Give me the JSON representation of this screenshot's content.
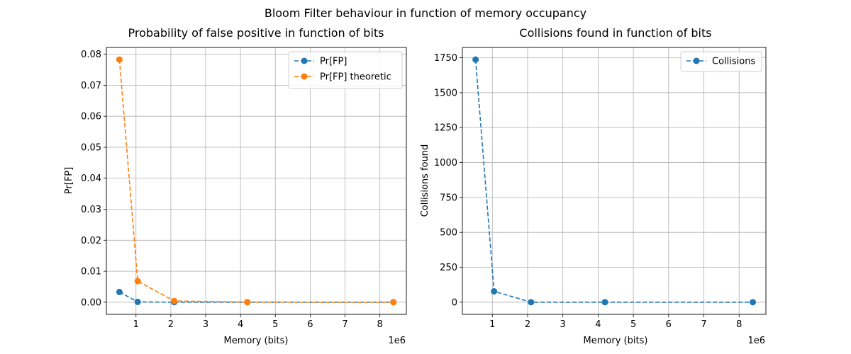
{
  "suptitle": "Bloom Filter behaviour in function of memory occupancy",
  "colors": {
    "blue": "#1f77b4",
    "orange": "#ff7f0e",
    "grid": "#b0b0b0"
  },
  "chart_data": [
    {
      "type": "line",
      "title": "Probability of false positive in function of bits",
      "xlabel": "Memory (bits)",
      "ylabel": "Pr[FP]",
      "x_offset_label": "1e6",
      "x": [
        524288,
        1048576,
        2097152,
        4194304,
        8388608
      ],
      "xlim": [
        150000,
        8760000
      ],
      "ylim": [
        -0.00392,
        0.0822
      ],
      "xticks": [
        1,
        2,
        3,
        4,
        5,
        6,
        7,
        8
      ],
      "xtick_labels": [
        "1",
        "2",
        "3",
        "4",
        "5",
        "6",
        "7",
        "8"
      ],
      "yticks": [
        0.0,
        0.01,
        0.02,
        0.03,
        0.04,
        0.05,
        0.06,
        0.07,
        0.08
      ],
      "ytick_labels": [
        "0.00",
        "0.01",
        "0.02",
        "0.03",
        "0.04",
        "0.05",
        "0.06",
        "0.07",
        "0.08"
      ],
      "grid": true,
      "legend_position": "top-right",
      "series": [
        {
          "name": "Pr[FP]",
          "color": "#1f77b4",
          "values": [
            0.0033,
            0.0001,
            0.0,
            0.0,
            0.0
          ]
        },
        {
          "name": "Pr[FP] theoretic",
          "color": "#ff7f0e",
          "values": [
            0.0783,
            0.0068,
            0.0004,
            3e-05,
            2e-06
          ]
        }
      ]
    },
    {
      "type": "line",
      "title": "Collisions found in function of bits",
      "xlabel": "Memory (bits)",
      "ylabel": "Collisions found",
      "x_offset_label": "1e6",
      "x": [
        524288,
        1048576,
        2097152,
        4194304,
        8388608
      ],
      "xlim": [
        150000,
        8760000
      ],
      "ylim": [
        -87,
        1824
      ],
      "xticks": [
        1,
        2,
        3,
        4,
        5,
        6,
        7,
        8
      ],
      "xtick_labels": [
        "1",
        "2",
        "3",
        "4",
        "5",
        "6",
        "7",
        "8"
      ],
      "yticks": [
        0,
        250,
        500,
        750,
        1000,
        1250,
        1500,
        1750
      ],
      "ytick_labels": [
        "0",
        "250",
        "500",
        "750",
        "1000",
        "1250",
        "1500",
        "1750"
      ],
      "grid": true,
      "legend_position": "top-right",
      "series": [
        {
          "name": "Collisions",
          "color": "#1f77b4",
          "values": [
            1737,
            78,
            0,
            0,
            0
          ]
        }
      ]
    }
  ]
}
